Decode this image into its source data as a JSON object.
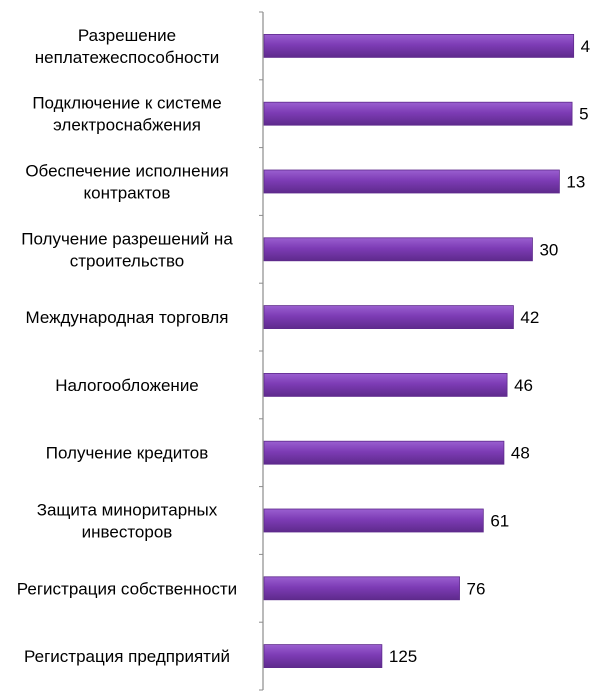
{
  "chart_data": {
    "type": "bar",
    "orientation": "horizontal",
    "title": "",
    "xlabel": "",
    "ylabel": "",
    "categories": [
      [
        "Разрешение",
        "неплатежеспособности"
      ],
      [
        "Подключение к системе",
        "электроснабжения"
      ],
      [
        "Обеспечение исполнения",
        "контрактов"
      ],
      [
        "Получение разрешений на",
        "строительство"
      ],
      [
        "Международная торговля"
      ],
      [
        "Налогообложение"
      ],
      [
        "Получение кредитов"
      ],
      [
        "Защита миноритарных",
        "инвесторов"
      ],
      [
        "Регистрация собственности"
      ],
      [
        "Регистрация предприятий"
      ]
    ],
    "values": [
      4,
      5,
      13,
      30,
      42,
      46,
      48,
      61,
      76,
      125
    ],
    "value_labels": [
      "4",
      "5",
      "13",
      "30",
      "42",
      "46",
      "48",
      "61",
      "76",
      "125"
    ],
    "axis_reversed": true,
    "xlim": [
      0,
      200
    ],
    "grid": false,
    "legend": "none",
    "colors": {
      "bar_fill": "#7d3cb5",
      "bar_light": "#9a5fd0",
      "bar_dark": "#5e2a8c",
      "axis": "#8c8c8c",
      "text": "#000000"
    }
  }
}
